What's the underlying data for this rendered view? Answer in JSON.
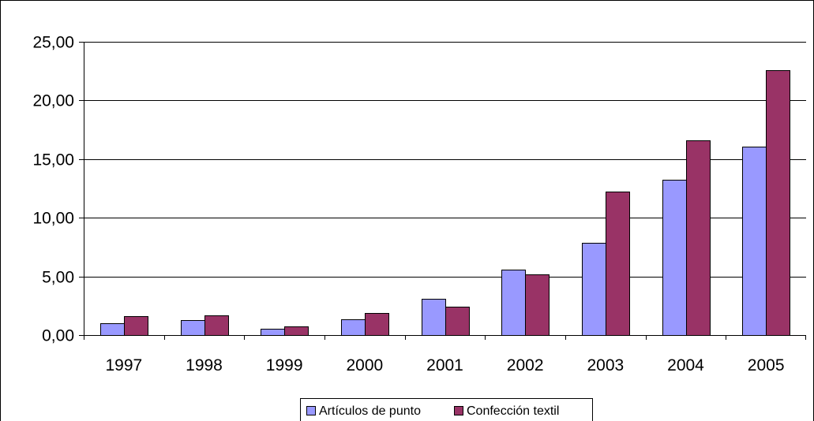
{
  "chart_data": {
    "type": "bar",
    "categories": [
      "1997",
      "1998",
      "1999",
      "2000",
      "2001",
      "2002",
      "2003",
      "2004",
      "2005"
    ],
    "series": [
      {
        "name": "Artículos de punto",
        "color": "#9999ff",
        "values": [
          1.0,
          1.25,
          0.55,
          1.35,
          3.1,
          5.55,
          7.85,
          13.25,
          16.05
        ]
      },
      {
        "name": "Confección textil",
        "color": "#993366",
        "values": [
          1.6,
          1.65,
          0.75,
          1.9,
          2.45,
          5.2,
          12.2,
          16.6,
          22.6
        ]
      }
    ],
    "ylim": [
      0,
      25
    ],
    "yticks": [
      "0,00",
      "5,00",
      "10,00",
      "15,00",
      "20,00",
      "25,00"
    ],
    "grid": true,
    "legend": "bottom"
  }
}
